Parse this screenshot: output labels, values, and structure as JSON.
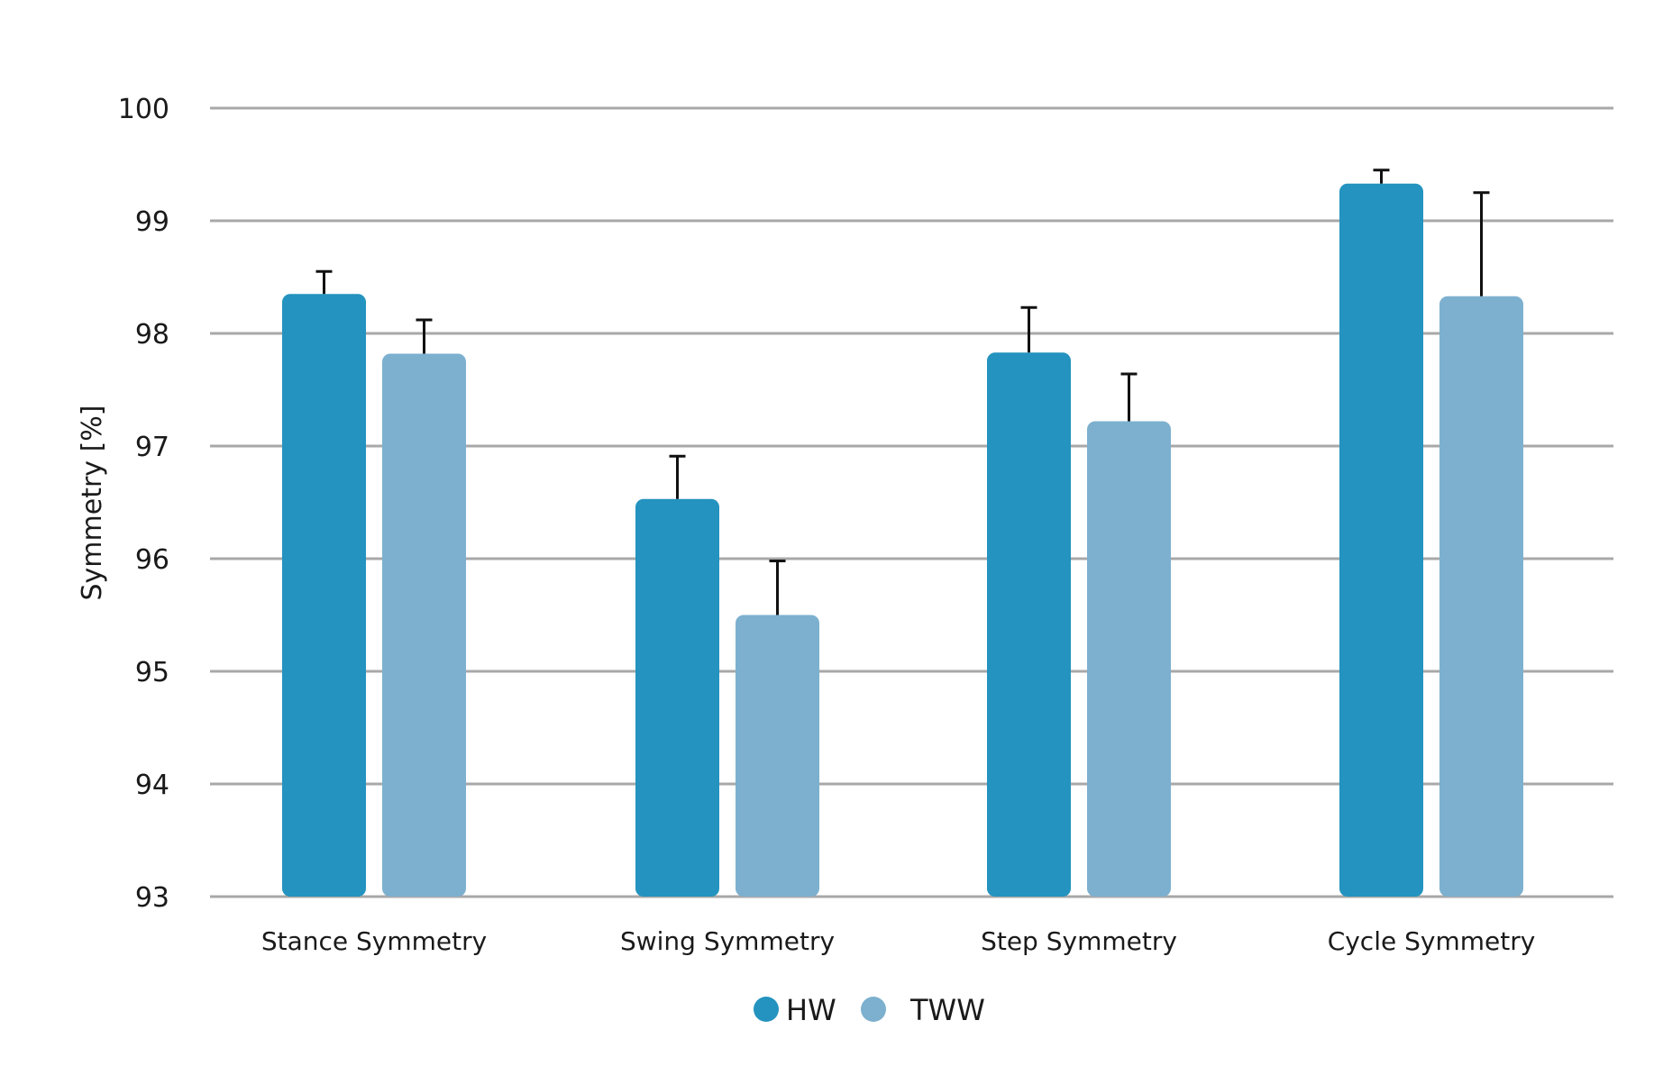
{
  "chart_data": {
    "type": "bar",
    "title": "",
    "xlabel": "",
    "ylabel": "Symmetry [%]",
    "ylim": [
      93,
      100
    ],
    "yticks": [
      93,
      94,
      95,
      96,
      97,
      98,
      99,
      100
    ],
    "grid": true,
    "legend_position": "bottom-center",
    "categories": [
      "Stance Symmetry",
      "Swing Symmetry",
      "Step Symmetry",
      "Cycle Symmetry"
    ],
    "series": [
      {
        "name": "HW",
        "color": "#2493bf",
        "values": [
          98.35,
          96.53,
          97.83,
          99.33
        ],
        "error": [
          0.2,
          0.38,
          0.4,
          0.12
        ]
      },
      {
        "name": "TWW",
        "color": "#7db0cf",
        "values": [
          97.82,
          95.5,
          97.22,
          98.33
        ],
        "error": [
          0.3,
          0.48,
          0.42,
          0.92
        ]
      }
    ],
    "gridline_color": "#a8a8a8",
    "errorbar_color": "#111111"
  }
}
